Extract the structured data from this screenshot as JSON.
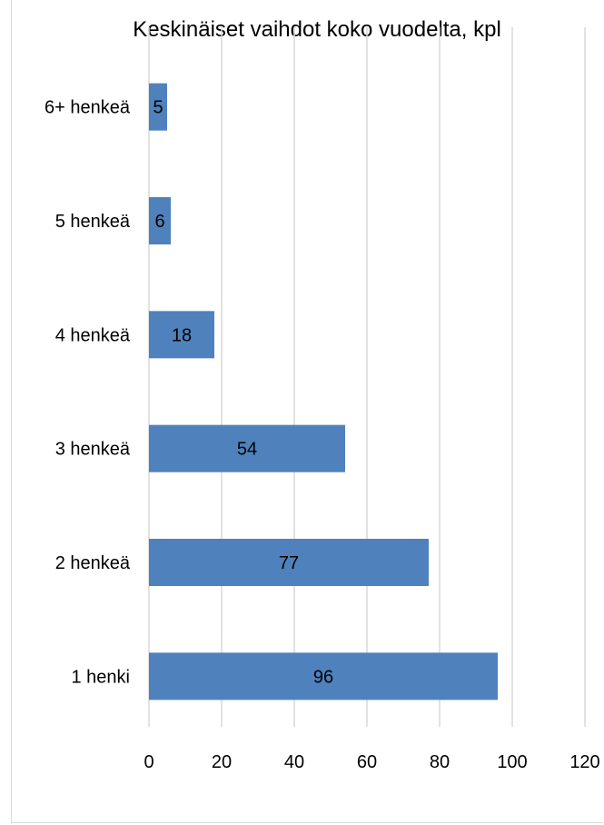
{
  "chart_data": {
    "type": "bar",
    "orientation": "horizontal",
    "title": "Keskinäiset vaihdot koko vuodelta, kpl",
    "categories": [
      "1 henki",
      "2 henkeä",
      "3 henkeä",
      "4 henkeä",
      "5 henkeä",
      "6+ henkeä"
    ],
    "values": [
      96,
      77,
      54,
      18,
      6,
      5
    ],
    "xlim": [
      0,
      120
    ],
    "xticks": [
      0,
      20,
      40,
      60,
      80,
      100,
      120
    ],
    "xtick_labels": [
      "0",
      "20",
      "40",
      "60",
      "80",
      "100",
      "120"
    ],
    "data_labels": [
      "96",
      "77",
      "54",
      "18",
      "6",
      "5"
    ],
    "grid": "vertical",
    "bar_color": "#4f81bd",
    "grid_color": "#d9d9d9",
    "legend": "none"
  }
}
